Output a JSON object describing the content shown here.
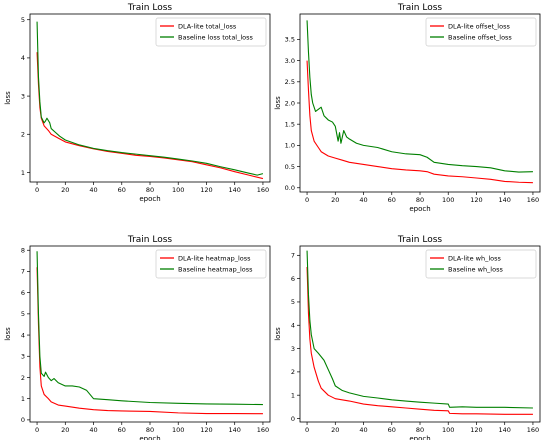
{
  "chart_data": [
    {
      "type": "line",
      "title": "Train Loss",
      "xlabel": "epoch",
      "ylabel": "loss",
      "xlim": [
        -5,
        165
      ],
      "ylim": [
        0.75,
        5.15
      ],
      "xticks": [
        0,
        20,
        40,
        60,
        80,
        100,
        120,
        140,
        160
      ],
      "yticks": [
        1,
        2,
        3,
        4,
        5
      ],
      "legend_position": "top-right",
      "series": [
        {
          "name": "DLA-lite total_loss",
          "color": "#ff0000",
          "points": [
            [
              0,
              4.15
            ],
            [
              1,
              3.3
            ],
            [
              2,
              2.7
            ],
            [
              3,
              2.42
            ],
            [
              5,
              2.22
            ],
            [
              8,
              2.1
            ],
            [
              10,
              2.0
            ],
            [
              15,
              1.9
            ],
            [
              20,
              1.8
            ],
            [
              30,
              1.7
            ],
            [
              40,
              1.62
            ],
            [
              50,
              1.55
            ],
            [
              60,
              1.5
            ],
            [
              70,
              1.45
            ],
            [
              80,
              1.42
            ],
            [
              90,
              1.38
            ],
            [
              100,
              1.33
            ],
            [
              110,
              1.28
            ],
            [
              120,
              1.2
            ],
            [
              130,
              1.12
            ],
            [
              140,
              1.02
            ],
            [
              150,
              0.93
            ],
            [
              160,
              0.84
            ]
          ]
        },
        {
          "name": "Baseline loss total_loss",
          "color": "#008000",
          "points": [
            [
              0,
              4.95
            ],
            [
              1,
              3.5
            ],
            [
              2,
              2.85
            ],
            [
              3,
              2.45
            ],
            [
              5,
              2.3
            ],
            [
              6,
              2.35
            ],
            [
              7,
              2.42
            ],
            [
              9,
              2.3
            ],
            [
              10,
              2.15
            ],
            [
              13,
              2.05
            ],
            [
              16,
              1.95
            ],
            [
              20,
              1.85
            ],
            [
              30,
              1.72
            ],
            [
              40,
              1.63
            ],
            [
              50,
              1.57
            ],
            [
              60,
              1.52
            ],
            [
              70,
              1.48
            ],
            [
              80,
              1.44
            ],
            [
              90,
              1.4
            ],
            [
              100,
              1.35
            ],
            [
              110,
              1.3
            ],
            [
              120,
              1.24
            ],
            [
              130,
              1.15
            ],
            [
              140,
              1.07
            ],
            [
              150,
              0.98
            ],
            [
              156,
              0.93
            ],
            [
              160,
              0.97
            ]
          ]
        }
      ]
    },
    {
      "type": "line",
      "title": "Train Loss",
      "xlabel": "epoch",
      "ylabel": "loss",
      "xlim": [
        -5,
        165
      ],
      "ylim": [
        -0.1,
        4.1
      ],
      "xticks": [
        0,
        20,
        40,
        60,
        80,
        100,
        120,
        140,
        160
      ],
      "yticks": [
        0.0,
        0.5,
        1.0,
        1.5,
        2.0,
        2.5,
        3.0,
        3.5
      ],
      "legend_position": "top-right",
      "series": [
        {
          "name": "DLA-lite offset_loss",
          "color": "#ff0000",
          "points": [
            [
              0,
              3.0
            ],
            [
              1,
              2.3
            ],
            [
              2,
              1.7
            ],
            [
              3,
              1.35
            ],
            [
              5,
              1.1
            ],
            [
              8,
              0.95
            ],
            [
              10,
              0.85
            ],
            [
              15,
              0.75
            ],
            [
              20,
              0.7
            ],
            [
              25,
              0.65
            ],
            [
              30,
              0.6
            ],
            [
              40,
              0.55
            ],
            [
              50,
              0.5
            ],
            [
              60,
              0.45
            ],
            [
              70,
              0.42
            ],
            [
              80,
              0.4
            ],
            [
              85,
              0.38
            ],
            [
              90,
              0.32
            ],
            [
              100,
              0.28
            ],
            [
              110,
              0.26
            ],
            [
              120,
              0.23
            ],
            [
              130,
              0.2
            ],
            [
              140,
              0.15
            ],
            [
              150,
              0.13
            ],
            [
              160,
              0.12
            ]
          ]
        },
        {
          "name": "Baseline offset_loss",
          "color": "#008000",
          "points": [
            [
              0,
              3.95
            ],
            [
              1,
              3.2
            ],
            [
              2,
              2.6
            ],
            [
              3,
              2.2
            ],
            [
              4,
              2.0
            ],
            [
              6,
              1.8
            ],
            [
              8,
              1.85
            ],
            [
              10,
              1.9
            ],
            [
              12,
              1.7
            ],
            [
              15,
              1.6
            ],
            [
              18,
              1.55
            ],
            [
              20,
              1.45
            ],
            [
              22,
              1.1
            ],
            [
              23,
              1.3
            ],
            [
              24,
              1.05
            ],
            [
              26,
              1.35
            ],
            [
              28,
              1.2
            ],
            [
              30,
              1.15
            ],
            [
              35,
              1.05
            ],
            [
              40,
              1.0
            ],
            [
              50,
              0.95
            ],
            [
              60,
              0.85
            ],
            [
              70,
              0.8
            ],
            [
              80,
              0.78
            ],
            [
              85,
              0.72
            ],
            [
              90,
              0.6
            ],
            [
              100,
              0.55
            ],
            [
              110,
              0.52
            ],
            [
              120,
              0.5
            ],
            [
              130,
              0.47
            ],
            [
              140,
              0.4
            ],
            [
              150,
              0.37
            ],
            [
              160,
              0.38
            ]
          ]
        }
      ]
    },
    {
      "type": "line",
      "title": "Train Loss",
      "xlabel": "epoch",
      "ylabel": "loss",
      "xlim": [
        -5,
        165
      ],
      "ylim": [
        -0.1,
        8.2
      ],
      "xticks": [
        0,
        20,
        40,
        60,
        80,
        100,
        120,
        140,
        160
      ],
      "yticks": [
        0,
        1,
        2,
        3,
        4,
        5,
        6,
        7,
        8
      ],
      "legend_position": "top-right",
      "series": [
        {
          "name": "DLA-lite heatmap_loss",
          "color": "#ff0000",
          "points": [
            [
              0,
              7.2
            ],
            [
              1,
              4.5
            ],
            [
              2,
              2.5
            ],
            [
              3,
              1.6
            ],
            [
              5,
              1.2
            ],
            [
              8,
              1.0
            ],
            [
              10,
              0.85
            ],
            [
              15,
              0.7
            ],
            [
              20,
              0.65
            ],
            [
              30,
              0.55
            ],
            [
              40,
              0.48
            ],
            [
              50,
              0.44
            ],
            [
              60,
              0.42
            ],
            [
              80,
              0.4
            ],
            [
              100,
              0.33
            ],
            [
              120,
              0.3
            ],
            [
              140,
              0.3
            ],
            [
              160,
              0.29
            ]
          ]
        },
        {
          "name": "Baseline heatmap_loss",
          "color": "#008000",
          "points": [
            [
              0,
              7.95
            ],
            [
              1,
              5.0
            ],
            [
              2,
              3.0
            ],
            [
              3,
              2.2
            ],
            [
              5,
              2.05
            ],
            [
              6,
              2.25
            ],
            [
              8,
              2.0
            ],
            [
              10,
              1.85
            ],
            [
              12,
              1.95
            ],
            [
              15,
              1.75
            ],
            [
              20,
              1.6
            ],
            [
              25,
              1.6
            ],
            [
              30,
              1.55
            ],
            [
              35,
              1.4
            ],
            [
              40,
              1.0
            ],
            [
              50,
              0.95
            ],
            [
              60,
              0.9
            ],
            [
              80,
              0.82
            ],
            [
              100,
              0.78
            ],
            [
              120,
              0.75
            ],
            [
              140,
              0.74
            ],
            [
              160,
              0.72
            ]
          ]
        }
      ]
    },
    {
      "type": "line",
      "title": "Train Loss",
      "xlabel": "epoch",
      "ylabel": "loss",
      "xlim": [
        -5,
        165
      ],
      "ylim": [
        -0.15,
        7.4
      ],
      "xticks": [
        0,
        20,
        40,
        60,
        80,
        100,
        120,
        140,
        160
      ],
      "yticks": [
        0,
        1,
        2,
        3,
        4,
        5,
        6,
        7
      ],
      "legend_position": "top-right",
      "series": [
        {
          "name": "DLA-lite wh_loss",
          "color": "#ff0000",
          "points": [
            [
              0,
              6.5
            ],
            [
              1,
              4.5
            ],
            [
              2,
              3.4
            ],
            [
              3,
              2.8
            ],
            [
              5,
              2.2
            ],
            [
              8,
              1.6
            ],
            [
              10,
              1.3
            ],
            [
              15,
              1.0
            ],
            [
              20,
              0.85
            ],
            [
              30,
              0.75
            ],
            [
              40,
              0.62
            ],
            [
              50,
              0.55
            ],
            [
              60,
              0.5
            ],
            [
              70,
              0.45
            ],
            [
              80,
              0.4
            ],
            [
              90,
              0.35
            ],
            [
              100,
              0.33
            ],
            [
              101,
              0.22
            ],
            [
              110,
              0.2
            ],
            [
              120,
              0.2
            ],
            [
              140,
              0.18
            ],
            [
              160,
              0.18
            ]
          ]
        },
        {
          "name": "Baseline wh_loss",
          "color": "#008000",
          "points": [
            [
              0,
              7.2
            ],
            [
              1,
              5.3
            ],
            [
              2,
              4.2
            ],
            [
              3,
              3.6
            ],
            [
              5,
              3.0
            ],
            [
              8,
              2.8
            ],
            [
              10,
              2.65
            ],
            [
              12,
              2.5
            ],
            [
              15,
              2.1
            ],
            [
              18,
              1.7
            ],
            [
              20,
              1.4
            ],
            [
              25,
              1.2
            ],
            [
              30,
              1.1
            ],
            [
              40,
              0.95
            ],
            [
              50,
              0.88
            ],
            [
              60,
              0.8
            ],
            [
              70,
              0.75
            ],
            [
              80,
              0.7
            ],
            [
              90,
              0.66
            ],
            [
              100,
              0.62
            ],
            [
              101,
              0.48
            ],
            [
              110,
              0.5
            ],
            [
              120,
              0.48
            ],
            [
              140,
              0.48
            ],
            [
              160,
              0.45
            ]
          ]
        }
      ]
    }
  ]
}
